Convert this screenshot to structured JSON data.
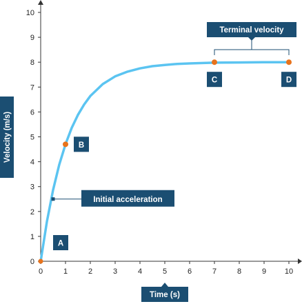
{
  "chart_data": {
    "type": "line",
    "title": "",
    "xlabel": "Time (s)",
    "ylabel": "Velocity (m/s)",
    "xlim": [
      0,
      10
    ],
    "ylim": [
      0,
      10
    ],
    "xticks": [
      0,
      1,
      2,
      3,
      4,
      5,
      6,
      7,
      8,
      9,
      10
    ],
    "yticks": [
      0,
      1,
      2,
      3,
      4,
      5,
      6,
      7,
      8,
      9,
      10
    ],
    "grid": false,
    "series": [
      {
        "x": [
          0,
          0.25,
          0.5,
          0.75,
          1,
          1.25,
          1.5,
          1.75,
          2,
          2.5,
          3,
          3.5,
          4,
          4.5,
          5,
          5.5,
          6,
          7,
          8,
          9,
          10
        ],
        "y": [
          0,
          1.59,
          2.87,
          3.89,
          4.7,
          5.36,
          5.88,
          6.3,
          6.64,
          7.12,
          7.43,
          7.62,
          7.75,
          7.84,
          7.89,
          7.93,
          7.95,
          7.98,
          7.99,
          8.0,
          8.0
        ]
      }
    ],
    "points": [
      {
        "label": "A",
        "x": 0,
        "y": 0
      },
      {
        "label": "B",
        "x": 1,
        "y": 4.7
      },
      {
        "label": "C",
        "x": 7,
        "y": 8
      },
      {
        "label": "D",
        "x": 10,
        "y": 8
      }
    ],
    "annotations": {
      "initial_acceleration": {
        "text": "Initial acceleration",
        "x": 0.5,
        "y": 2.5
      },
      "terminal_velocity": {
        "text": "Terminal velocity",
        "x_range": [
          7,
          10
        ],
        "y": 8
      }
    }
  },
  "colors": {
    "curve": "#5bc4f1",
    "point": "#e8731c",
    "label_bg": "#1b4e72",
    "axis": "#333333"
  }
}
